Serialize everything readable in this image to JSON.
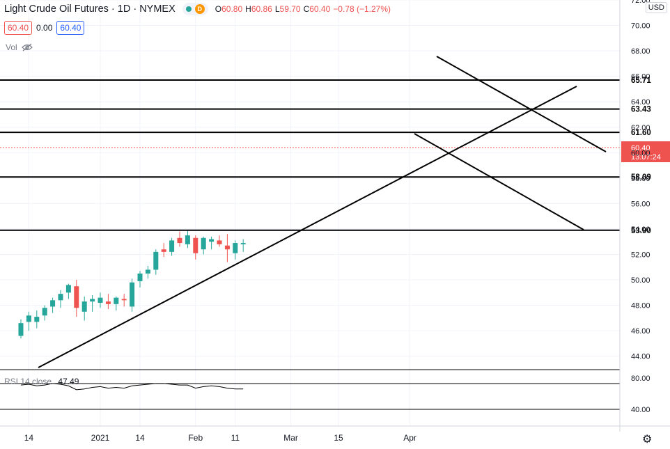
{
  "header": {
    "title": "Light Crude Oil Futures · 1D · NYMEX",
    "badge": "D",
    "ohlc": [
      {
        "k": "O",
        "v": "60.80"
      },
      {
        "k": "H",
        "v": "60.86"
      },
      {
        "k": "L",
        "v": "59.70"
      },
      {
        "k": "C",
        "v": "60.40"
      },
      {
        "k": "",
        "v": "−0.78 (−1.27%)"
      }
    ]
  },
  "prices": {
    "sell": "60.40",
    "spread": "0.00",
    "buy": "60.40"
  },
  "volume": {
    "label": "Vol"
  },
  "rsi": {
    "label": "RSI 14 close",
    "value": "47.49",
    "ticks": [
      "80.00",
      "40.00"
    ]
  },
  "currency": "USD",
  "colors": {
    "up": "#26a69a",
    "down": "#ef5350",
    "line": "#000000",
    "grid": "#f0f3fa",
    "last": "#ef5350"
  },
  "chart_data": {
    "type": "candlestick",
    "title": "Light Crude Oil Futures · 1D · NYMEX",
    "ylim": [
      43,
      72
    ],
    "yticks": [
      44,
      46,
      48,
      50,
      52,
      54,
      56,
      58,
      60,
      62,
      64,
      66,
      68,
      70,
      72
    ],
    "xticks": [
      {
        "label": "14",
        "i": 1
      },
      {
        "label": "2021",
        "i": 10
      },
      {
        "label": "14",
        "i": 15
      },
      {
        "label": "Feb",
        "i": 22
      },
      {
        "label": "11",
        "i": 27
      },
      {
        "label": "Mar",
        "i": 34
      },
      {
        "label": "15",
        "i": 40
      },
      {
        "label": "Apr",
        "i": 49
      }
    ],
    "candles": [
      {
        "o": 45.6,
        "h": 46.9,
        "l": 45.4,
        "c": 46.6
      },
      {
        "o": 46.7,
        "h": 47.5,
        "l": 46.0,
        "c": 47.2
      },
      {
        "o": 46.7,
        "h": 47.6,
        "l": 46.2,
        "c": 47.1
      },
      {
        "o": 47.2,
        "h": 48.0,
        "l": 46.8,
        "c": 47.8
      },
      {
        "o": 47.9,
        "h": 48.6,
        "l": 47.4,
        "c": 48.4
      },
      {
        "o": 48.4,
        "h": 49.2,
        "l": 47.8,
        "c": 48.9
      },
      {
        "o": 49.0,
        "h": 49.7,
        "l": 48.5,
        "c": 49.6
      },
      {
        "o": 49.5,
        "h": 50.0,
        "l": 47.1,
        "c": 47.8
      },
      {
        "o": 47.5,
        "h": 48.7,
        "l": 46.8,
        "c": 48.3
      },
      {
        "o": 48.3,
        "h": 48.8,
        "l": 47.5,
        "c": 48.5
      },
      {
        "o": 48.2,
        "h": 49.0,
        "l": 47.8,
        "c": 48.6
      },
      {
        "o": 48.3,
        "h": 48.9,
        "l": 47.7,
        "c": 48.1
      },
      {
        "o": 48.1,
        "h": 48.7,
        "l": 47.6,
        "c": 48.6
      },
      {
        "o": 48.5,
        "h": 48.9,
        "l": 47.9,
        "c": 48.4
      },
      {
        "o": 47.9,
        "h": 50.1,
        "l": 47.5,
        "c": 49.8
      },
      {
        "o": 49.9,
        "h": 50.7,
        "l": 49.4,
        "c": 50.5
      },
      {
        "o": 50.5,
        "h": 51.1,
        "l": 50.1,
        "c": 50.8
      },
      {
        "o": 50.8,
        "h": 52.4,
        "l": 50.4,
        "c": 52.2
      },
      {
        "o": 52.4,
        "h": 52.9,
        "l": 51.8,
        "c": 52.2
      },
      {
        "o": 52.2,
        "h": 53.3,
        "l": 51.9,
        "c": 53.1
      },
      {
        "o": 53.3,
        "h": 53.8,
        "l": 52.6,
        "c": 52.9
      },
      {
        "o": 52.8,
        "h": 53.9,
        "l": 52.5,
        "c": 53.5
      },
      {
        "o": 53.3,
        "h": 53.5,
        "l": 51.6,
        "c": 52.1
      },
      {
        "o": 52.4,
        "h": 53.4,
        "l": 52.0,
        "c": 53.3
      },
      {
        "o": 53.0,
        "h": 53.4,
        "l": 52.4,
        "c": 53.2
      },
      {
        "o": 53.1,
        "h": 53.5,
        "l": 52.6,
        "c": 52.8
      },
      {
        "o": 52.7,
        "h": 53.6,
        "l": 51.4,
        "c": 52.4
      },
      {
        "o": 52.1,
        "h": 53.1,
        "l": 51.6,
        "c": 52.9
      },
      {
        "o": 52.8,
        "h": 53.2,
        "l": 52.2,
        "c": 52.9
      }
    ],
    "hlines": [
      65.71,
      63.43,
      61.6,
      58.09,
      53.9
    ],
    "last_price": "60.40",
    "countdown": "13:07:24",
    "rsi_series": [
      71,
      72,
      70,
      71,
      73,
      72,
      70,
      65,
      66,
      68,
      69,
      67,
      68,
      67,
      70,
      71,
      72,
      73,
      73,
      72,
      71,
      71,
      67,
      69,
      70,
      69,
      67,
      66,
      66
    ]
  }
}
